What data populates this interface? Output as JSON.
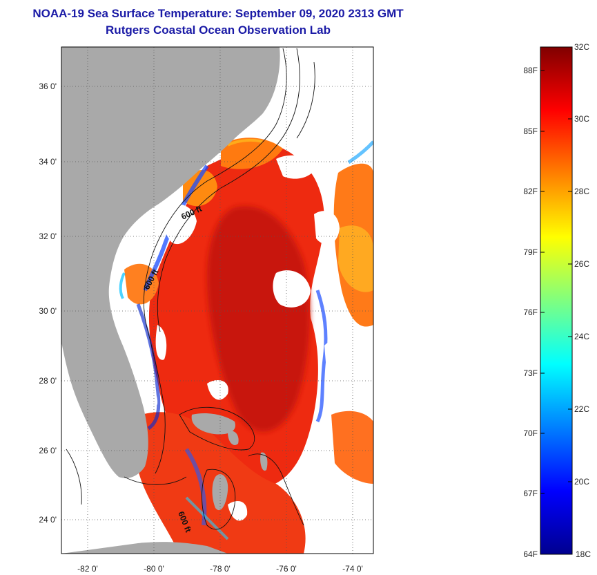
{
  "header": {
    "title": "NOAA-19 Sea Surface Temperature:  September 09, 2020 2313 GMT",
    "subtitle": "Rutgers Coastal Ocean Observation Lab"
  },
  "map": {
    "lat_labels": [
      "36 0'",
      "34 0'",
      "32 0'",
      "30 0'",
      "28 0'",
      "26 0'",
      "24 0'"
    ],
    "lon_labels": [
      "-82 0'",
      "-80 0'",
      "-78 0'",
      "-76 0'",
      "-74 0'"
    ],
    "isobath_labels": [
      "600 ft",
      "600 ft",
      "600 ft"
    ],
    "colors": {
      "land": "#a9a9a9",
      "cloud": "#ffffff",
      "warm": "#ee2a10",
      "hot": "#c40f0a"
    }
  },
  "colorbar": {
    "fahrenheit_labels": [
      "88F",
      "85F",
      "82F",
      "79F",
      "76F",
      "73F",
      "70F",
      "67F",
      "64F"
    ],
    "celsius_labels": [
      "32C",
      "30C",
      "28C",
      "26C",
      "24C",
      "22C",
      "20C",
      "18C"
    ],
    "range_c": [
      18,
      32
    ],
    "colormap": "jet"
  }
}
